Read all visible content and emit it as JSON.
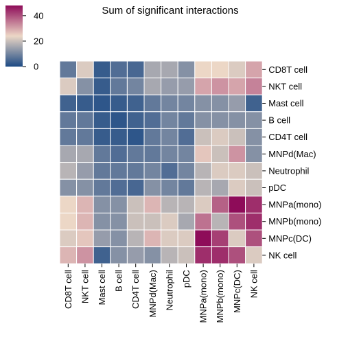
{
  "chart_data": {
    "type": "heatmap",
    "title": "Sum of significant interactions",
    "rows": [
      "CD8T cell",
      "NKT cell",
      "Mast cell",
      "B cell",
      "CD4T cell",
      "MNPd(Mac)",
      "Neutrophil",
      "pDC",
      "MNPa(mono)",
      "MNPb(mono)",
      "MNPc(DC)",
      "NK cell"
    ],
    "columns": [
      "CD8T cell",
      "NKT cell",
      "Mast cell",
      "B cell",
      "CD4T cell",
      "MNPd(Mac)",
      "Neutrophil",
      "pDC",
      "MNPa(mono)",
      "MNPb(mono)",
      "MNPc(DC)",
      "NK cell"
    ],
    "values": [
      [
        8,
        22,
        3,
        6,
        5,
        16,
        16,
        12,
        24,
        24,
        22,
        30
      ],
      [
        22,
        12,
        3,
        8,
        10,
        16,
        14,
        14,
        30,
        32,
        30,
        34
      ],
      [
        4,
        3,
        2,
        3,
        4,
        8,
        10,
        10,
        12,
        12,
        14,
        4
      ],
      [
        8,
        8,
        3,
        2,
        4,
        6,
        10,
        8,
        12,
        12,
        12,
        12
      ],
      [
        8,
        8,
        3,
        3,
        2,
        8,
        10,
        6,
        20,
        22,
        20,
        12
      ],
      [
        16,
        16,
        8,
        6,
        8,
        8,
        10,
        10,
        26,
        20,
        32,
        12
      ],
      [
        18,
        14,
        8,
        8,
        8,
        10,
        6,
        10,
        18,
        22,
        22,
        20
      ],
      [
        12,
        12,
        8,
        6,
        5,
        12,
        10,
        8,
        18,
        16,
        22,
        20
      ],
      [
        24,
        28,
        12,
        12,
        20,
        28,
        18,
        18,
        22,
        38,
        48,
        44
      ],
      [
        24,
        28,
        12,
        12,
        20,
        20,
        22,
        16,
        36,
        18,
        40,
        44
      ],
      [
        22,
        26,
        14,
        12,
        18,
        28,
        22,
        22,
        48,
        42,
        22,
        40
      ],
      [
        28,
        32,
        4,
        12,
        14,
        12,
        18,
        20,
        44,
        44,
        40,
        22
      ]
    ],
    "colorbar": {
      "min": 0,
      "max": 48,
      "ticks": [
        "0",
        "20",
        "40"
      ],
      "tick_values": [
        0,
        20,
        40
      ]
    },
    "colors": {
      "low": "#1d4a84",
      "mid": "#ecd7c6",
      "high": "#8e0c59"
    },
    "legend_placement": "top-left"
  }
}
